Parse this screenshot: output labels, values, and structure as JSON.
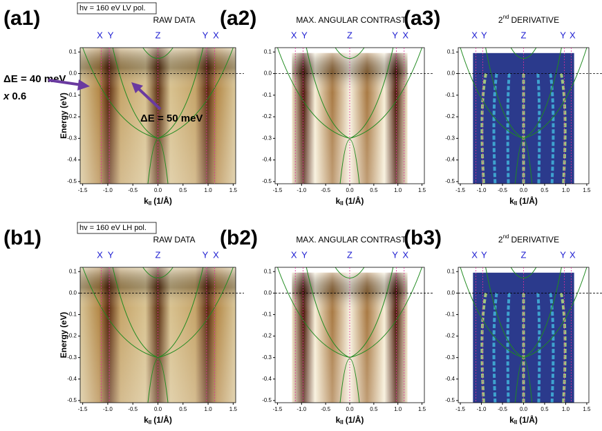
{
  "panels": [
    {
      "label": "(a1)",
      "header": "hv = 160 eV    LV pol.",
      "subtitle": {
        "text": "RAW DATA"
      },
      "style": "raw",
      "symmetry": [
        {
          "label": "X",
          "k": -1.13
        },
        {
          "label": "Y",
          "k": -0.97
        },
        {
          "label": "Z",
          "k": 0
        },
        {
          "label": "Y",
          "k": 0.97
        },
        {
          "label": "X",
          "k": 1.13
        }
      ],
      "xlabel": {
        "base": "k",
        "sub": "II",
        "unit": "(1/Å)"
      },
      "ylabel": "Energy (eV)",
      "annotations": [
        {
          "text": "ΔE = 40 meV"
        },
        {
          "italic": "x",
          "text": "0.6"
        },
        {
          "text": "ΔE = 50 meV"
        }
      ],
      "xlim": [
        -1.55,
        1.55
      ],
      "ylim": [
        -0.51,
        0.12
      ],
      "xticks": [
        -1.5,
        {
          "value": -1,
          "label": "-1.0"
        },
        -0.5,
        {
          "value": 0,
          "label": "0.0"
        },
        0.5,
        {
          "value": 1,
          "label": "1.0"
        },
        1.5
      ],
      "yticks": [
        0.1,
        {
          "value": 0,
          "label": "0.0"
        },
        -0.1,
        -0.2,
        -0.3,
        -0.4,
        -0.5
      ]
    },
    {
      "label": "(a2)",
      "subtitle": {
        "text": "MAX. ANGULAR CONTRAST"
      },
      "style": "contrast",
      "symmetry": [
        {
          "label": "X",
          "k": -1.13
        },
        {
          "label": "Y",
          "k": -0.97
        },
        {
          "label": "Z",
          "k": 0
        },
        {
          "label": "Y",
          "k": 0.97
        },
        {
          "label": "X",
          "k": 1.13
        }
      ],
      "xlabel": {
        "base": "k",
        "sub": "II",
        "unit": "(1/Å)"
      },
      "xlim": [
        -1.55,
        1.55
      ],
      "ylim": [
        -0.51,
        0.12
      ],
      "xticks": [
        -1.5,
        {
          "value": -1,
          "label": "-1.0"
        },
        -0.5,
        {
          "value": 0,
          "label": "0.0"
        },
        0.5,
        {
          "value": 1,
          "label": "1.0"
        },
        1.5
      ],
      "yticks": [
        0.1,
        {
          "value": 0,
          "label": "0.0"
        },
        -0.1,
        -0.2,
        -0.3,
        -0.4,
        -0.5
      ]
    },
    {
      "label": "(a3)",
      "subtitle": {
        "main": "2",
        "sup": "nd",
        "text": "DERIVATIVE"
      },
      "style": "deriv",
      "symmetry": [
        {
          "label": "X",
          "k": -1.13
        },
        {
          "label": "Y",
          "k": -0.97
        },
        {
          "label": "Z",
          "k": 0
        },
        {
          "label": "Y",
          "k": 0.97
        },
        {
          "label": "X",
          "k": 1.13
        }
      ],
      "xlabel": {
        "base": "k",
        "sub": "II",
        "unit": "(1/Å)"
      },
      "xlim": [
        -1.55,
        1.55
      ],
      "ylim": [
        -0.51,
        0.12
      ],
      "xticks": [
        -1.5,
        {
          "value": -1,
          "label": "-1.0"
        },
        -0.5,
        {
          "value": 0,
          "label": "0.0"
        },
        0.5,
        {
          "value": 1,
          "label": "1.0"
        },
        1.5
      ],
      "yticks": [
        0.1,
        {
          "value": 0,
          "label": "0.0"
        },
        -0.1,
        -0.2,
        -0.3,
        -0.4,
        -0.5
      ]
    },
    {
      "label": "(b1)",
      "header": "hv = 160 eV    LH pol.",
      "subtitle": {
        "text": "RAW DATA"
      },
      "style": "raw",
      "symmetry": [
        {
          "label": "X",
          "k": -1.13
        },
        {
          "label": "Y",
          "k": -0.97
        },
        {
          "label": "Z",
          "k": 0
        },
        {
          "label": "Y",
          "k": 0.97
        },
        {
          "label": "X",
          "k": 1.13
        }
      ],
      "xlabel": {
        "base": "k",
        "sub": "II",
        "unit": "(1/Å)"
      },
      "ylabel": "Energy (eV)",
      "xlim": [
        -1.55,
        1.55
      ],
      "ylim": [
        -0.51,
        0.12
      ],
      "xticks": [
        -1.5,
        {
          "value": -1,
          "label": "-1.0"
        },
        -0.5,
        {
          "value": 0,
          "label": "0.0"
        },
        0.5,
        {
          "value": 1,
          "label": "1.0"
        },
        1.5
      ],
      "yticks": [
        0.1,
        {
          "value": 0,
          "label": "0.0"
        },
        -0.1,
        -0.2,
        -0.3,
        -0.4,
        -0.5
      ]
    },
    {
      "label": "(b2)",
      "subtitle": {
        "text": "MAX. ANGULAR CONTRAST"
      },
      "style": "contrast",
      "symmetry": [
        {
          "label": "X",
          "k": -1.13
        },
        {
          "label": "Y",
          "k": -0.97
        },
        {
          "label": "Z",
          "k": 0
        },
        {
          "label": "Y",
          "k": 0.97
        },
        {
          "label": "X",
          "k": 1.13
        }
      ],
      "xlabel": {
        "base": "k",
        "sub": "II",
        "unit": "(1/Å)"
      },
      "xlim": [
        -1.55,
        1.55
      ],
      "ylim": [
        -0.51,
        0.12
      ],
      "xticks": [
        -1.5,
        {
          "value": -1,
          "label": "-1.0"
        },
        -0.5,
        {
          "value": 0,
          "label": "0.0"
        },
        0.5,
        {
          "value": 1,
          "label": "1.0"
        },
        1.5
      ],
      "yticks": [
        0.1,
        {
          "value": 0,
          "label": "0.0"
        },
        -0.1,
        -0.2,
        -0.3,
        -0.4,
        -0.5
      ]
    },
    {
      "label": "(b3)",
      "subtitle": {
        "main": "2",
        "sup": "nd",
        "text": "DERIVATIVE"
      },
      "style": "deriv",
      "symmetry": [
        {
          "label": "X",
          "k": -1.13
        },
        {
          "label": "Y",
          "k": -0.97
        },
        {
          "label": "Z",
          "k": 0
        },
        {
          "label": "Y",
          "k": 0.97
        },
        {
          "label": "X",
          "k": 1.13
        }
      ],
      "xlabel": {
        "base": "k",
        "sub": "II",
        "unit": "(1/Å)"
      },
      "xlim": [
        -1.55,
        1.55
      ],
      "ylim": [
        -0.51,
        0.12
      ],
      "xticks": [
        -1.5,
        {
          "value": -1,
          "label": "-1.0"
        },
        -0.5,
        {
          "value": 0,
          "label": "0.0"
        },
        0.5,
        {
          "value": 1,
          "label": "1.0"
        },
        1.5
      ],
      "yticks": [
        0.1,
        {
          "value": 0,
          "label": "0.0"
        },
        -0.1,
        -0.2,
        -0.3,
        -0.4,
        -0.5
      ]
    }
  ]
}
